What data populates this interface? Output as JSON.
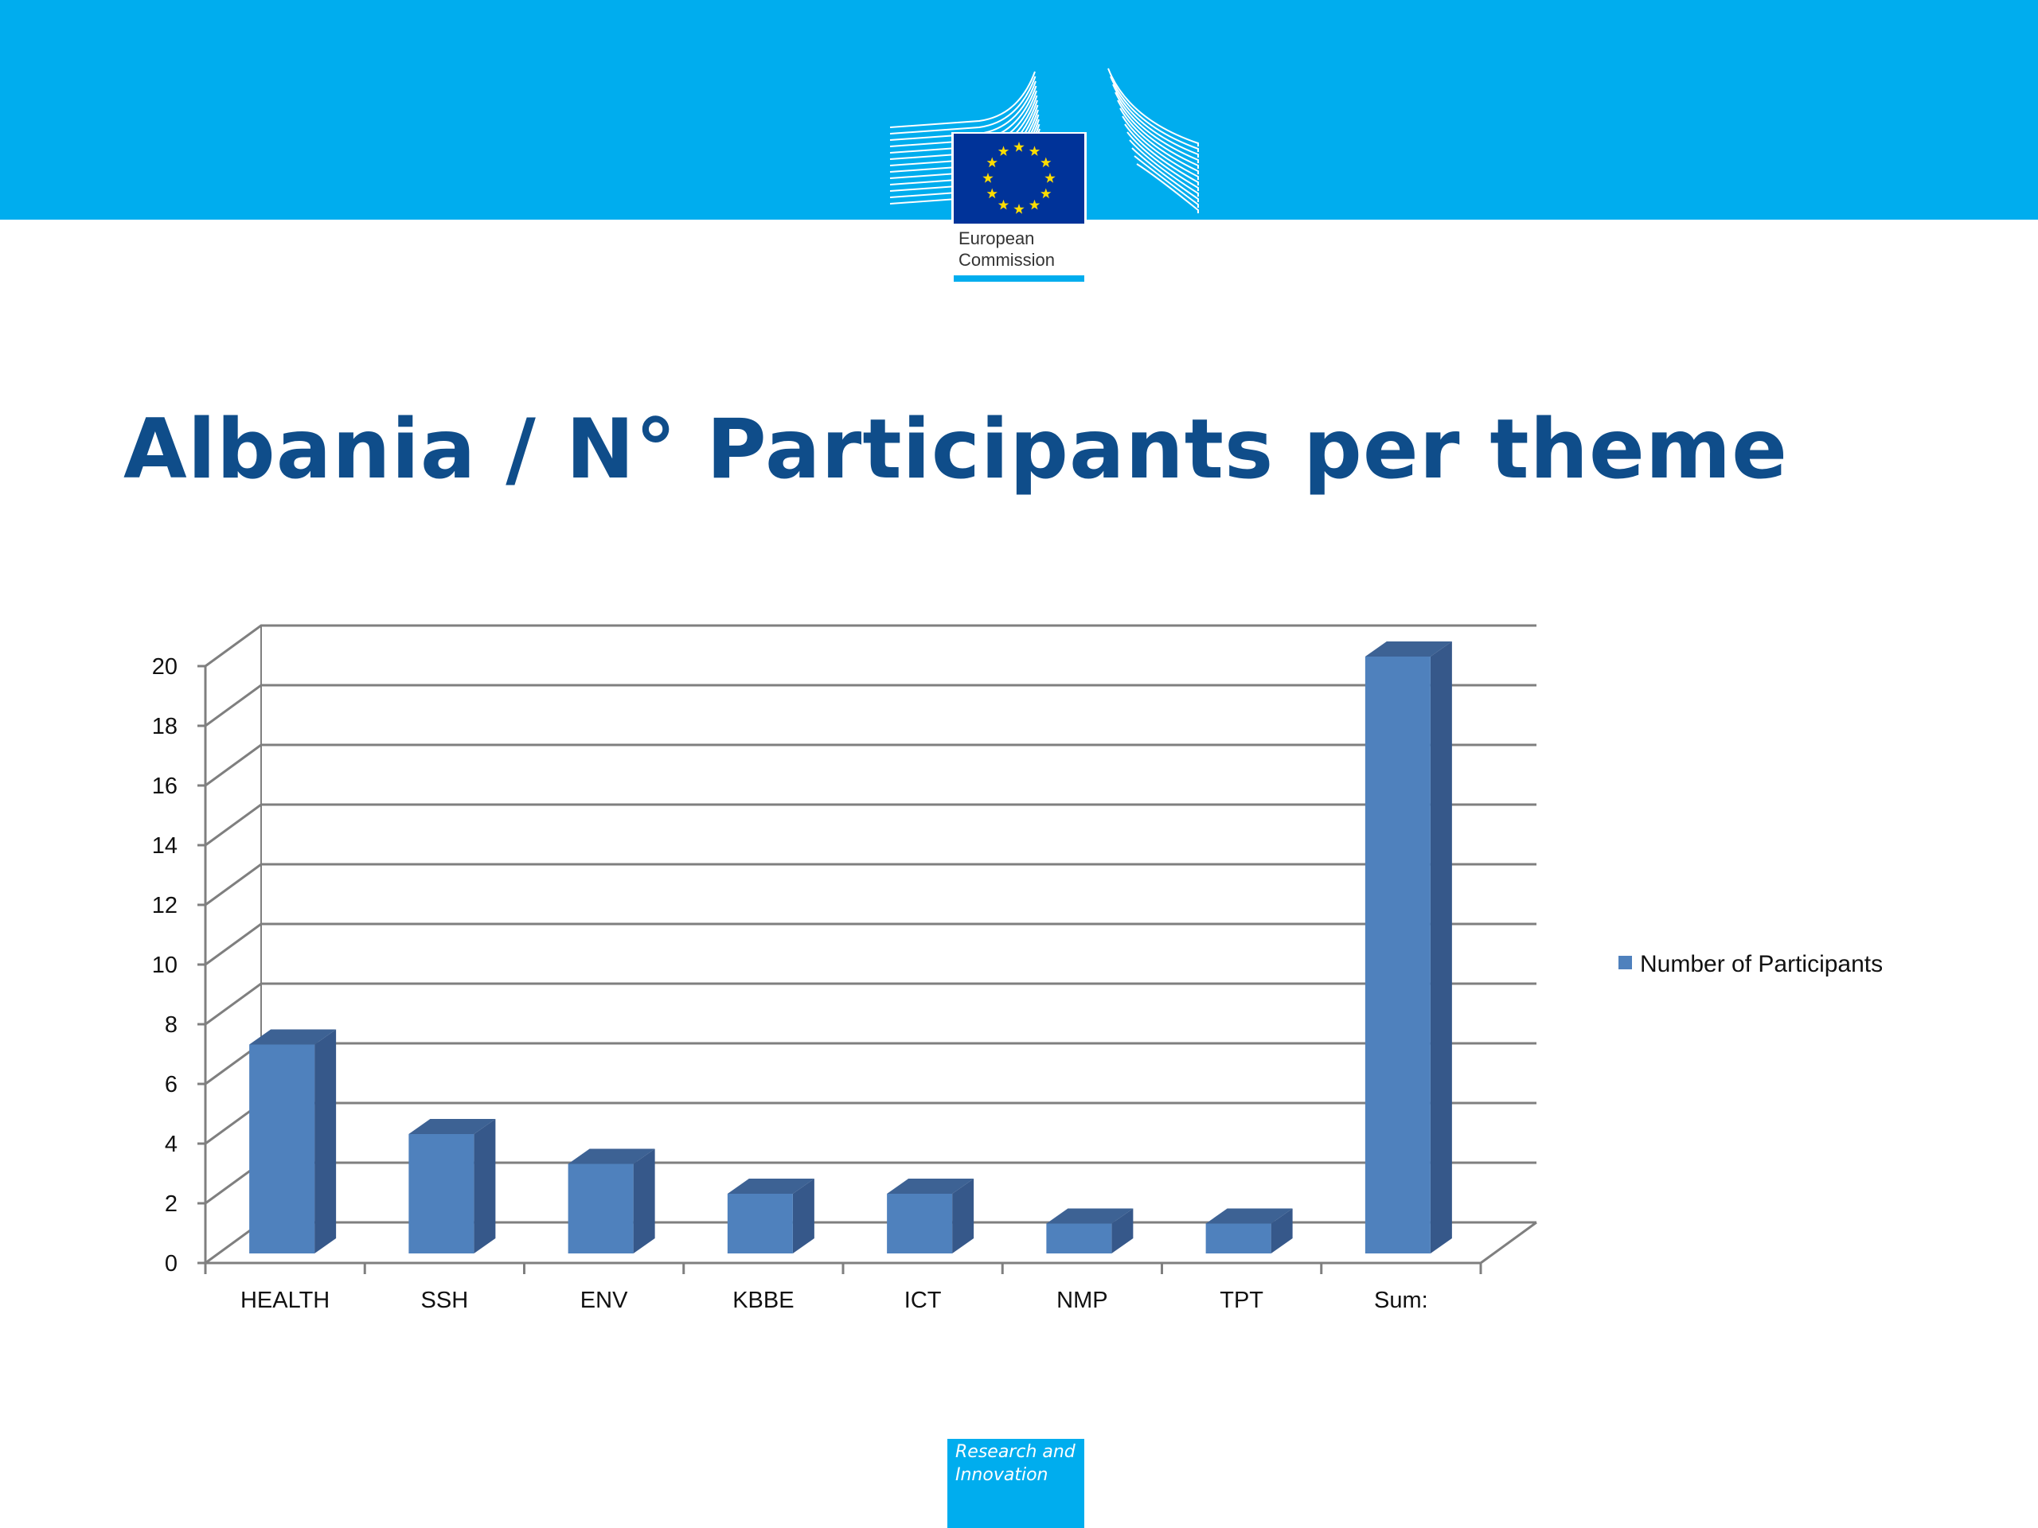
{
  "header": {
    "logo_name": "European Commission",
    "logo_line1": "European",
    "logo_line2": "Commission",
    "banner_color": "#00adee",
    "eu_flag_color": "#003399",
    "star_color": "#ffdd00"
  },
  "slide": {
    "title": "Albania / N° Participants per theme",
    "title_color": "#0f4d8a"
  },
  "chart_data": {
    "type": "bar",
    "categories": [
      "HEALTH",
      "SSH",
      "ENV",
      "KBBE",
      "ICT",
      "NMP",
      "TPT",
      "Sum:"
    ],
    "series": [
      {
        "name": "Number of Participants",
        "values": [
          7,
          4,
          3,
          2,
          2,
          1,
          1,
          20
        ]
      }
    ],
    "title": "",
    "xlabel": "",
    "ylabel": "",
    "ylim": [
      0,
      20
    ],
    "yticks": [
      0,
      2,
      4,
      6,
      8,
      10,
      12,
      14,
      16,
      18,
      20
    ],
    "grid": true,
    "style": "3d-column",
    "legend": "right",
    "bar_color": "#4f81bd"
  },
  "footer": {
    "badge_text": "Research and Innovation",
    "badge_line1": "Research and",
    "badge_line2": "Innovation"
  }
}
